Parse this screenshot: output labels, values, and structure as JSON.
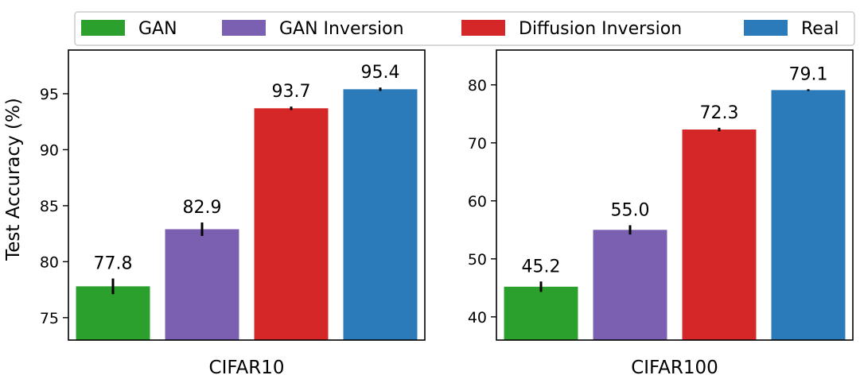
{
  "legend": {
    "placement": "top",
    "entries": [
      {
        "label": "GAN",
        "color": "#2ca02c"
      },
      {
        "label": "GAN Inversion",
        "color": "#7b5fb0"
      },
      {
        "label": "Diffusion Inversion",
        "color": "#d62728"
      },
      {
        "label": "Real",
        "color": "#2b7bba"
      }
    ]
  },
  "chart_data": [
    {
      "type": "bar",
      "title": "",
      "xlabel": "CIFAR10",
      "ylabel": "Test Accuracy (%)",
      "ylim": [
        73,
        98.9
      ],
      "yticks": [
        75,
        80,
        85,
        90,
        95
      ],
      "categories": [
        "GAN",
        "GAN Inversion",
        "Diffusion Inversion",
        "Real"
      ],
      "values": [
        77.8,
        82.9,
        93.7,
        95.4
      ],
      "error": [
        0.7,
        0.6,
        0.15,
        0.15
      ],
      "data_labels": [
        "77.8",
        "82.9",
        "93.7",
        "95.4"
      ],
      "colors": [
        "#2ca02c",
        "#7b5fb0",
        "#d62728",
        "#2b7bba"
      ],
      "grid": false
    },
    {
      "type": "bar",
      "title": "",
      "xlabel": "CIFAR100",
      "ylabel": "",
      "ylim": [
        36,
        86
      ],
      "yticks": [
        40,
        50,
        60,
        70,
        80
      ],
      "categories": [
        "GAN",
        "GAN Inversion",
        "Diffusion Inversion",
        "Real"
      ],
      "values": [
        45.2,
        55.0,
        72.3,
        79.1
      ],
      "error": [
        0.9,
        0.8,
        0.3,
        0.15
      ],
      "data_labels": [
        "45.2",
        "55.0",
        "72.3",
        "79.1"
      ],
      "colors": [
        "#2ca02c",
        "#7b5fb0",
        "#d62728",
        "#2b7bba"
      ],
      "grid": false
    }
  ]
}
